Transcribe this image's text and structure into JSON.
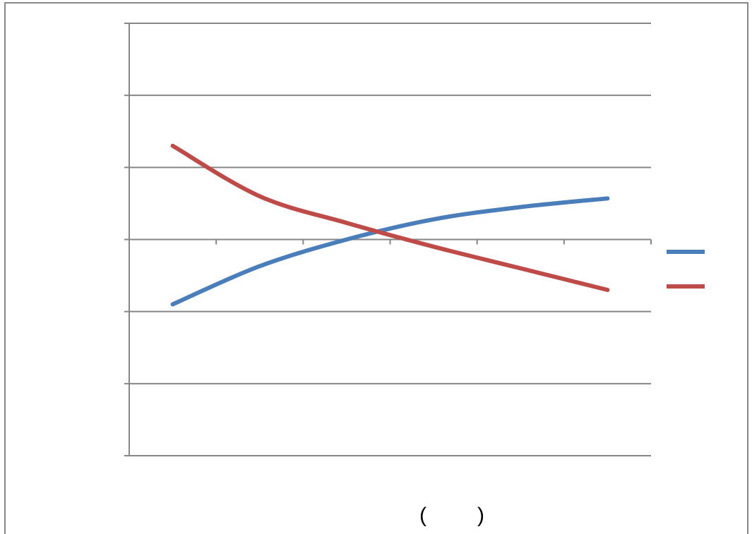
{
  "chart_data": {
    "type": "line",
    "title": "",
    "xlabel": "",
    "ylabel": "",
    "x": [
      1,
      2,
      3,
      4,
      5,
      6
    ],
    "xlim": [
      0.5,
      6.5
    ],
    "ylim": [
      -3,
      3
    ],
    "grid": true,
    "legend_position": "right",
    "series": [
      {
        "color": "#4a7ebb",
        "values": [
          -0.9,
          -0.37,
          0.0,
          0.28,
          0.45,
          0.57
        ]
      },
      {
        "color": "#be4b48",
        "values": [
          1.3,
          0.6,
          0.23,
          -0.1,
          -0.4,
          -0.7
        ]
      }
    ]
  },
  "footer": {
    "open_paren": "(",
    "close_paren": ")"
  },
  "colors": {
    "frame": "#888888",
    "grid": "#868686",
    "axis": "#868686"
  }
}
